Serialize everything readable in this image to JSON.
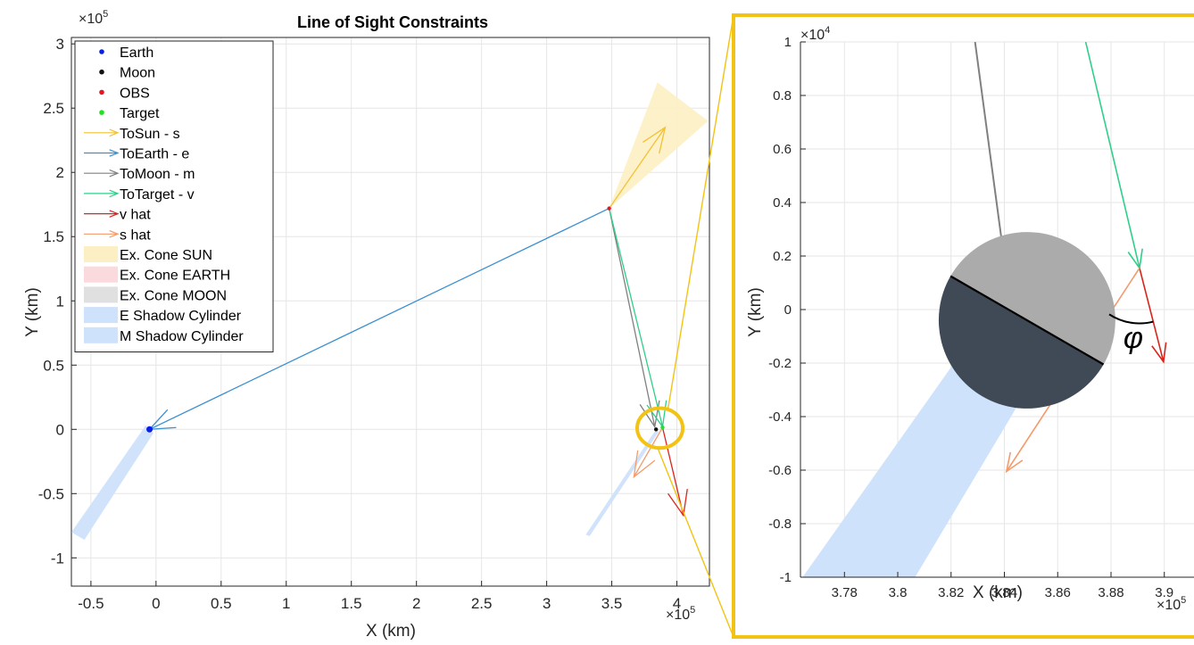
{
  "colors": {
    "earth": "#0a1fe6",
    "moon": "#111111",
    "obs": "#e8141e",
    "target": "#22e022",
    "to_sun": "#f2c230",
    "to_earth": "#3a8fd0",
    "to_moon": "#808080",
    "to_target": "#2ecf8a",
    "v_hat": "#d9261c",
    "s_hat": "#f59a6a",
    "cone_sun": "#fdefc4",
    "cone_earth": "#fadadd",
    "cone_moon": "#e0e0e0",
    "shadow": "#cfe2fb",
    "highlight": "#f2c314"
  },
  "chart_data": [
    {
      "type": "line",
      "title": "Line of Sight Constraints",
      "xlabel": "X (km)",
      "ylabel": "Y (km)",
      "x_exponent": "×10",
      "x_exponent_power": "5",
      "y_exponent": "×10",
      "y_exponent_power": "5",
      "xlim": [
        -0.65,
        4.25
      ],
      "ylim": [
        -1.22,
        3.05
      ],
      "xticks": [
        -0.5,
        0,
        0.5,
        1,
        1.5,
        2,
        2.5,
        3,
        3.5,
        4
      ],
      "xtick_labels": [
        "-0.5",
        "0",
        "0.5",
        "1",
        "1.5",
        "2",
        "2.5",
        "3",
        "3.5",
        "4"
      ],
      "yticks": [
        -1,
        -0.5,
        0,
        0.5,
        1,
        1.5,
        2,
        2.5,
        3
      ],
      "ytick_labels": [
        "-1",
        "-0.5",
        "0",
        "0.5",
        "1",
        "1.5",
        "2",
        "2.5",
        "3"
      ],
      "grid": true,
      "legend_position": "top-left",
      "legend": [
        {
          "label": "Earth",
          "kind": "dot",
          "color_key": "earth"
        },
        {
          "label": "Moon",
          "kind": "dot",
          "color_key": "moon"
        },
        {
          "label": "OBS",
          "kind": "dot",
          "color_key": "obs"
        },
        {
          "label": "Target",
          "kind": "dot",
          "color_key": "target"
        },
        {
          "label": "ToSun - s",
          "kind": "arrow",
          "color_key": "to_sun"
        },
        {
          "label": "ToEarth - e",
          "kind": "arrow",
          "color_key": "to_earth"
        },
        {
          "label": "ToMoon - m",
          "kind": "arrow",
          "color_key": "to_moon"
        },
        {
          "label": "ToTarget - v",
          "kind": "arrow",
          "color_key": "to_target"
        },
        {
          "label": "v hat",
          "kind": "arrow",
          "color_key": "v_hat"
        },
        {
          "label": "s hat",
          "kind": "arrow",
          "color_key": "s_hat"
        },
        {
          "label": "Ex. Cone SUN",
          "kind": "patch",
          "color_key": "cone_sun"
        },
        {
          "label": "Ex. Cone EARTH",
          "kind": "patch",
          "color_key": "cone_earth"
        },
        {
          "label": "Ex. Cone MOON",
          "kind": "patch",
          "color_key": "cone_moon"
        },
        {
          "label": "E Shadow Cylinder",
          "kind": "patch",
          "color_key": "shadow"
        },
        {
          "label": "M Shadow Cylinder",
          "kind": "patch",
          "color_key": "shadow"
        }
      ],
      "points": [
        {
          "name": "Earth",
          "x": -0.05,
          "y": 0.0,
          "color_key": "earth"
        },
        {
          "name": "Moon",
          "x": 3.84,
          "y": 0.0,
          "color_key": "moon"
        },
        {
          "name": "OBS",
          "x": 3.48,
          "y": 1.72,
          "color_key": "obs"
        },
        {
          "name": "Target",
          "x": 3.89,
          "y": 0.015,
          "color_key": "target"
        }
      ],
      "arrows": [
        {
          "name": "ToSun - s",
          "from": [
            3.48,
            1.72
          ],
          "to": [
            3.91,
            2.35
          ],
          "color_key": "to_sun"
        },
        {
          "name": "ToEarth - e",
          "from": [
            3.48,
            1.72
          ],
          "to": [
            -0.05,
            0.0
          ],
          "color_key": "to_earth"
        },
        {
          "name": "ToMoon - m",
          "from": [
            3.48,
            1.72
          ],
          "to": [
            3.83,
            0.02
          ],
          "color_key": "to_moon"
        },
        {
          "name": "ToTarget - v",
          "from": [
            3.48,
            1.72
          ],
          "to": [
            3.89,
            0.02
          ],
          "color_key": "to_target"
        },
        {
          "name": "v hat",
          "from": [
            3.89,
            0.015
          ],
          "to": [
            4.05,
            -0.67
          ],
          "color_key": "v_hat"
        },
        {
          "name": "s hat",
          "from": [
            3.89,
            0.015
          ],
          "to": [
            3.67,
            -0.37
          ],
          "color_key": "s_hat"
        }
      ],
      "patches": [
        {
          "name": "Ex. Cone SUN",
          "polygon": [
            [
              3.48,
              1.72
            ],
            [
              3.85,
              2.7
            ],
            [
              4.24,
              2.4
            ]
          ],
          "color_key": "cone_sun"
        },
        {
          "name": "E Shadow Cylinder",
          "polygon": [
            [
              -0.08,
              0.03
            ],
            [
              -0.02,
              -0.03
            ],
            [
              -0.55,
              -0.86
            ],
            [
              -0.65,
              -0.8
            ]
          ],
          "color_key": "shadow"
        },
        {
          "name": "M Shadow Cylinder",
          "polygon": [
            [
              3.84,
              0.0
            ],
            [
              3.86,
              -0.02
            ],
            [
              3.33,
              -0.83
            ],
            [
              3.3,
              -0.82
            ]
          ],
          "color_key": "shadow"
        }
      ],
      "highlight": {
        "x": 3.87,
        "y": 0.01,
        "rx": 0.175,
        "ry": 0.155,
        "color_key": "highlight"
      }
    },
    {
      "type": "line",
      "title": "",
      "xlabel": "X (km)",
      "ylabel": "Y (km)",
      "x_exponent": "×10",
      "x_exponent_power": "5",
      "y_exponent": "×10",
      "y_exponent_power": "4",
      "xlim": [
        3.7635,
        3.9175
      ],
      "ylim": [
        -1.0,
        1.0
      ],
      "xticks": [
        3.78,
        3.8,
        3.82,
        3.84,
        3.86,
        3.88,
        3.9
      ],
      "xtick_labels": [
        "3.78",
        "3.8",
        "3.82",
        "3.84",
        "3.86",
        "3.88",
        "3.9"
      ],
      "yticks": [
        -1,
        -0.8,
        -0.6,
        -0.4,
        -0.2,
        0,
        0.2,
        0.4,
        0.6,
        0.8,
        1
      ],
      "ytick_labels": [
        "-1",
        "-0.8",
        "-0.6",
        "-0.4",
        "-0.2",
        "0",
        "0.2",
        "0.4",
        "0.6",
        "0.8",
        "1"
      ],
      "grid": true,
      "angle_label": "φ",
      "moon": {
        "x": 3.8485,
        "y": -0.04,
        "r": 0.33,
        "lit_color": "#ababab",
        "dark_color": "#3f4a56"
      },
      "arrows": [
        {
          "name": "ToMoon - m",
          "from": [
            3.829,
            1.0
          ],
          "to": [
            3.8395,
            0.22
          ],
          "color_key": "to_moon"
        },
        {
          "name": "ToTarget - v",
          "from": [
            3.8705,
            1.0
          ],
          "to": [
            3.8907,
            0.155
          ],
          "color_key": "to_target"
        },
        {
          "name": "v hat",
          "from": [
            3.8907,
            0.155
          ],
          "to": [
            3.8997,
            -0.195
          ],
          "color_key": "v_hat"
        },
        {
          "name": "s hat",
          "from": [
            3.8907,
            0.155
          ],
          "to": [
            3.8408,
            -0.605
          ],
          "color_key": "s_hat"
        }
      ],
      "patches": [
        {
          "name": "M Shadow Cylinder",
          "polygon": [
            [
              3.8353,
              0.0
            ],
            [
              3.8617,
              -0.08
            ],
            [
              3.8065,
              -1.0
            ],
            [
              3.7643,
              -1.0
            ]
          ],
          "color_key": "shadow"
        }
      ],
      "target": {
        "x": 3.8907,
        "y": 0.155
      }
    }
  ]
}
